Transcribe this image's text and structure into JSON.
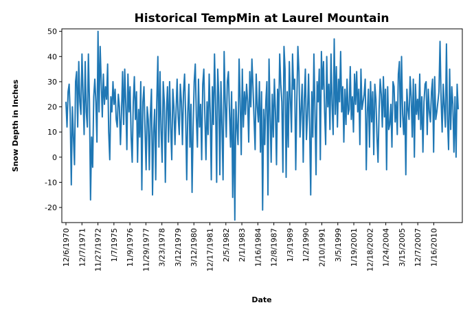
{
  "chart_data": {
    "type": "line",
    "title": "Historical TempMin at Laurel Mountain",
    "xlabel": "Date",
    "ylabel": "Snow Depth in Inches",
    "ylim": [
      -26,
      51
    ],
    "yticks": [
      -20,
      -10,
      0,
      10,
      20,
      30,
      40,
      50
    ],
    "xtick_labels": [
      "12/6/1970",
      "12/7/1971",
      "11/27/1972",
      "1/7/1975",
      "11/9/1976",
      "11/29/1977",
      "3/23/1978",
      "3/12/1979",
      "3/12/1980",
      "12/17/1981",
      "2/5/1982",
      "2/1/1983",
      "1/16/1984",
      "12/8/1987",
      "1/3/1989",
      "1/2/1990",
      "2/10/1991",
      "3/5/1999",
      "1/19/2001",
      "12/18/2002",
      "1/24/2004",
      "3/15/2005",
      "12/7/2007",
      "1/16/2010"
    ],
    "grid": false,
    "legend": "none",
    "line_color": "#1f77b4",
    "series": [
      {
        "values": [
          22,
          12,
          26,
          29,
          17,
          -11,
          20,
          8,
          -3,
          30,
          34,
          12,
          38,
          22,
          17,
          41,
          25,
          9,
          38,
          18,
          12,
          41,
          22,
          -17,
          8,
          -4,
          24,
          31,
          22,
          6,
          50,
          18,
          44,
          30,
          16,
          33,
          21,
          28,
          23,
          37,
          10,
          -1,
          24,
          18,
          30,
          21,
          27,
          15,
          12,
          25,
          20,
          5,
          18,
          34,
          13,
          35,
          21,
          3,
          33,
          18,
          28,
          8,
          -2,
          22,
          32,
          15,
          26,
          -2,
          19,
          8,
          30,
          -13,
          22,
          28,
          11,
          -5,
          20,
          15,
          -5,
          17,
          27,
          -15,
          10,
          19,
          -9,
          22,
          40,
          4,
          34,
          11,
          -2,
          30,
          22,
          -10,
          18,
          28,
          6,
          30,
          12,
          -1,
          27,
          20,
          5,
          18,
          31,
          16,
          9,
          29,
          22,
          5,
          26,
          33,
          16,
          -9,
          18,
          29,
          4,
          21,
          -14,
          12,
          30,
          37,
          16,
          4,
          31,
          12,
          21,
          -1,
          29,
          35,
          16,
          -1,
          22,
          9,
          33,
          17,
          -9,
          28,
          13,
          41,
          21,
          -10,
          35,
          24,
          -7,
          30,
          12,
          -9,
          42,
          22,
          8,
          30,
          34,
          18,
          4,
          26,
          -16,
          19,
          -25,
          22,
          12,
          5,
          39,
          22,
          1,
          35,
          12,
          26,
          17,
          29,
          22,
          6,
          34,
          20,
          39,
          28,
          15,
          3,
          33,
          20,
          14,
          30,
          2,
          26,
          -21,
          19,
          5,
          22,
          30,
          -15,
          39,
          17,
          -2,
          25,
          8,
          31,
          18,
          -3,
          27,
          14,
          41,
          29,
          22,
          -6,
          44,
          35,
          -8,
          26,
          4,
          38,
          23,
          10,
          41,
          27,
          31,
          -5,
          22,
          44,
          34,
          8,
          19,
          29,
          -2,
          23,
          35,
          7,
          17,
          33,
          12,
          -15,
          26,
          8,
          41,
          18,
          -7,
          30,
          22,
          35,
          -1,
          42,
          27,
          38,
          18,
          5,
          40,
          20,
          29,
          11,
          41,
          21,
          9,
          47,
          17,
          36,
          12,
          31,
          22,
          42,
          18,
          28,
          6,
          27,
          13,
          31,
          17,
          19,
          36,
          15,
          24,
          10,
          33,
          21,
          34,
          18,
          27,
          5,
          35,
          19,
          22,
          25,
          31,
          -5,
          18,
          27,
          4,
          30,
          14,
          26,
          1,
          29,
          23,
          8,
          -2,
          19,
          31,
          25,
          12,
          32,
          16,
          27,
          -5,
          28,
          11,
          13,
          21,
          4,
          30,
          28,
          14,
          22,
          9,
          33,
          38,
          12,
          40,
          17,
          9,
          22,
          -7,
          27,
          19,
          15,
          32,
          24,
          8,
          31,
          0,
          29,
          17,
          23,
          15,
          33,
          11,
          24,
          2,
          22,
          29,
          30,
          9,
          27,
          18,
          14,
          26,
          31,
          2,
          32,
          15,
          18,
          22,
          26,
          46,
          23,
          10,
          29,
          20,
          12,
          45,
          15,
          3,
          35,
          11,
          28,
          21,
          2,
          24,
          0,
          29,
          19
        ]
      }
    ]
  }
}
